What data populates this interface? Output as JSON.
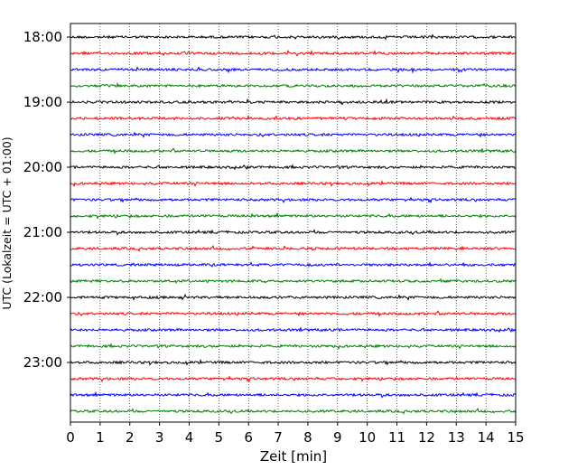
{
  "chart_data": {
    "type": "line",
    "title": "",
    "xlabel": "Zeit  [min]",
    "ylabel": "UTC (Lokalzeit = UTC + 01:00)",
    "xlim": [
      0,
      15
    ],
    "x_ticks": [
      0,
      1,
      2,
      3,
      4,
      5,
      6,
      7,
      8,
      9,
      10,
      11,
      12,
      13,
      14,
      15
    ],
    "y_tick_labels": [
      "18:00",
      "19:00",
      "20:00",
      "21:00",
      "22:00",
      "23:00"
    ],
    "rows_per_hour": 4,
    "minutes_per_row": 15,
    "grid": "vertical dotted lines at each minute",
    "trace_colors": [
      "#000000",
      "#ff0000",
      "#0000ff",
      "#008000"
    ],
    "traces": [
      {
        "start": "18:00",
        "color": "#000000"
      },
      {
        "start": "18:15",
        "color": "#ff0000"
      },
      {
        "start": "18:30",
        "color": "#0000ff"
      },
      {
        "start": "18:45",
        "color": "#008000"
      },
      {
        "start": "19:00",
        "color": "#000000"
      },
      {
        "start": "19:15",
        "color": "#ff0000"
      },
      {
        "start": "19:30",
        "color": "#0000ff"
      },
      {
        "start": "19:45",
        "color": "#008000"
      },
      {
        "start": "20:00",
        "color": "#000000"
      },
      {
        "start": "20:15",
        "color": "#ff0000"
      },
      {
        "start": "20:30",
        "color": "#0000ff"
      },
      {
        "start": "20:45",
        "color": "#008000"
      },
      {
        "start": "21:00",
        "color": "#000000"
      },
      {
        "start": "21:15",
        "color": "#ff0000"
      },
      {
        "start": "21:30",
        "color": "#0000ff"
      },
      {
        "start": "21:45",
        "color": "#008000"
      },
      {
        "start": "22:00",
        "color": "#000000"
      },
      {
        "start": "22:15",
        "color": "#ff0000"
      },
      {
        "start": "22:30",
        "color": "#0000ff"
      },
      {
        "start": "22:45",
        "color": "#008000"
      },
      {
        "start": "23:00",
        "color": "#000000"
      },
      {
        "start": "23:15",
        "color": "#ff0000"
      },
      {
        "start": "23:30",
        "color": "#0000ff"
      },
      {
        "start": "23:45",
        "color": "#008000"
      }
    ]
  }
}
